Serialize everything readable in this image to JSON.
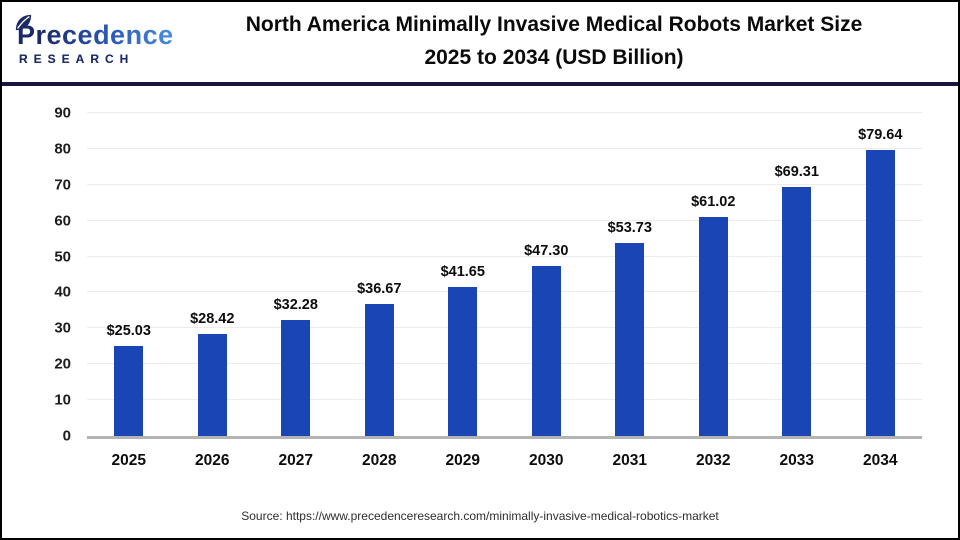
{
  "logo": {
    "name": "Precedence",
    "sub": "RESEARCH"
  },
  "title": {
    "line1": "North America Minimally Invasive Medical Robots Market Size",
    "line2": "2025 to 2034 (USD Billion)"
  },
  "source": "Source: https://www.precedenceresearch.com/minimally-invasive-medical-robotics-market",
  "colors": {
    "bar": "#1a45b5",
    "separator_navy": "#16163e",
    "gridline": "#ececec",
    "baseline": "#b3b3b3",
    "logo_dark": "#1b2a66",
    "logo_light": "#4a8ed8"
  },
  "chart_data": {
    "type": "bar",
    "title": "North America Minimally Invasive Medical Robots Market Size 2025 to 2034 (USD Billion)",
    "categories": [
      "2025",
      "2026",
      "2027",
      "2028",
      "2029",
      "2030",
      "2031",
      "2032",
      "2033",
      "2034"
    ],
    "values": [
      25.03,
      28.42,
      32.28,
      36.67,
      41.65,
      47.3,
      53.73,
      61.02,
      69.31,
      79.64
    ],
    "bar_labels": [
      "$25.03",
      "$28.42",
      "$32.28",
      "$36.67",
      "$41.65",
      "$47.30",
      "$53.73",
      "$61.02",
      "$69.31",
      "$79.64"
    ],
    "xlabel": "",
    "ylabel": "",
    "ylim": [
      0,
      90
    ],
    "yticks": [
      0,
      10,
      20,
      30,
      40,
      50,
      60,
      70,
      80,
      90
    ],
    "grid": true,
    "legend": false,
    "bar_color": "#1a45b5"
  }
}
